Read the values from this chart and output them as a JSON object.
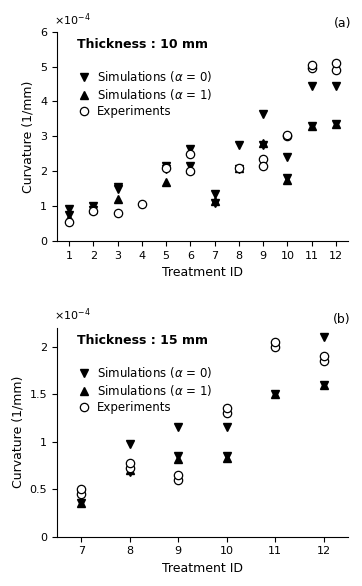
{
  "plot_a": {
    "title": "Thickness : 10 mm",
    "xlabel": "Treatment ID",
    "ylabel": "Curvature (1/mm)",
    "xlim": [
      0.5,
      12.5
    ],
    "ylim": [
      0,
      0.0006
    ],
    "yticks": [
      0,
      0.0001,
      0.0002,
      0.0003,
      0.0004,
      0.0005,
      0.0006
    ],
    "ytick_labels": [
      "0",
      "1",
      "2",
      "3",
      "4",
      "5",
      "6"
    ],
    "xticks": [
      1,
      2,
      3,
      4,
      5,
      6,
      7,
      8,
      9,
      10,
      11,
      12
    ],
    "sim0_x": [
      1,
      1,
      2,
      2,
      3,
      3,
      5,
      5,
      6,
      6,
      7,
      7,
      8,
      8,
      9,
      9,
      10,
      10,
      11,
      11,
      12,
      12
    ],
    "sim0_y": [
      9e-05,
      7.5e-05,
      0.0001,
      8.8e-05,
      0.000155,
      0.00015,
      0.000215,
      0.000205,
      0.000265,
      0.000215,
      0.000135,
      0.00011,
      0.000275,
      0.000205,
      0.000365,
      0.000275,
      0.00024,
      0.00018,
      0.000445,
      0.00033,
      0.000445,
      0.000335
    ],
    "sim1_x": [
      1,
      2,
      3,
      5,
      6,
      7,
      8,
      9,
      10,
      11,
      12
    ],
    "sim1_y": [
      6.5e-05,
      9e-05,
      0.00012,
      0.00017,
      0.000205,
      0.000115,
      0.00021,
      0.00028,
      0.000175,
      0.00033,
      0.000335
    ],
    "exp_x": [
      1,
      2,
      3,
      4,
      5,
      6,
      6,
      8,
      9,
      9,
      10,
      10,
      11,
      11,
      12,
      12
    ],
    "exp_y": [
      5.5e-05,
      8.5e-05,
      8e-05,
      0.000105,
      0.00021,
      0.00025,
      0.0002,
      0.00021,
      0.000235,
      0.000215,
      0.0003,
      0.000305,
      0.000495,
      0.000505,
      0.00049,
      0.00051
    ],
    "panel_label": "(a)"
  },
  "plot_b": {
    "title": "Thickness : 15 mm",
    "xlabel": "Treatment ID",
    "ylabel": "Curvature (1/mm)",
    "xlim": [
      6.5,
      12.5
    ],
    "ylim": [
      0,
      0.00022
    ],
    "yticks": [
      0,
      5e-05,
      0.0001,
      0.00015,
      0.0002
    ],
    "ytick_labels": [
      "0",
      "0.5",
      "1",
      "1.5",
      "2"
    ],
    "xticks": [
      7,
      8,
      9,
      10,
      11,
      12
    ],
    "sim0_x": [
      7,
      7,
      8,
      8,
      9,
      9,
      10,
      10,
      11,
      11,
      12,
      12
    ],
    "sim0_y": [
      4.5e-05,
      3.5e-05,
      9.8e-05,
      6.8e-05,
      0.000115,
      8.5e-05,
      0.000115,
      8.5e-05,
      0.0002,
      0.00015,
      0.00021,
      0.00016
    ],
    "sim1_x": [
      7,
      8,
      9,
      10,
      11,
      12
    ],
    "sim1_y": [
      3.5e-05,
      7e-05,
      8.2e-05,
      8.3e-05,
      0.00015,
      0.00016
    ],
    "exp_x": [
      7,
      7,
      8,
      8,
      9,
      9,
      10,
      10,
      11,
      11,
      12,
      12
    ],
    "exp_y": [
      4.5e-05,
      5e-05,
      7.2e-05,
      7.7e-05,
      6e-05,
      6.5e-05,
      0.00013,
      0.000135,
      0.0002,
      0.000205,
      0.000185,
      0.00019
    ],
    "panel_label": "(b)"
  },
  "marker_size": 6,
  "font_size": 9,
  "title_font_size": 9,
  "legend_font_size": 8.5
}
